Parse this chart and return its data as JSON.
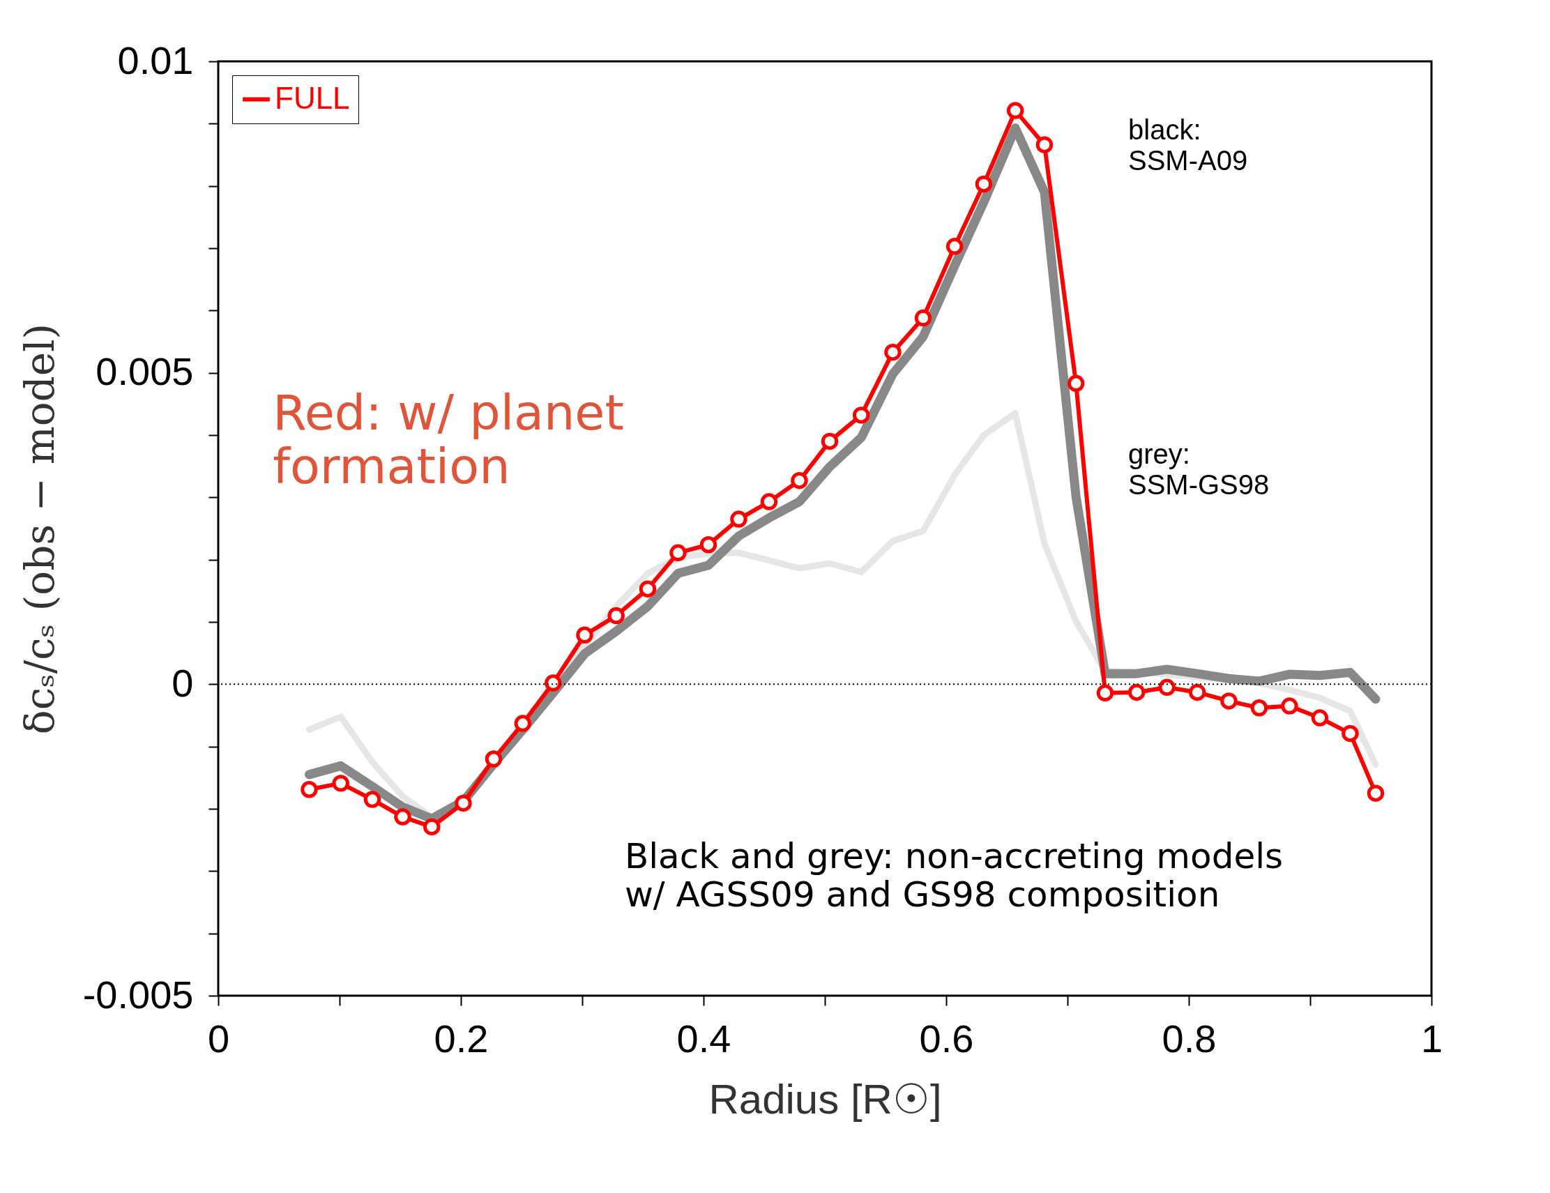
{
  "chart_data": {
    "type": "line",
    "xlabel": "Radius [R☉]",
    "ylabel": "δcₛ/cₛ (obs − model)",
    "xlim": [
      0,
      1
    ],
    "ylim": [
      -0.005,
      0.01
    ],
    "xticks": [
      0,
      {
        "value": 0.1,
        "label": null
      },
      0.2,
      {
        "value": 0.3,
        "label": null
      },
      0.4,
      {
        "value": 0.5,
        "label": null
      },
      0.6,
      {
        "value": 0.7,
        "label": null
      },
      0.8,
      {
        "value": 0.9,
        "label": null
      },
      1
    ],
    "yticks": [
      -0.005,
      {
        "value": -0.004,
        "label": null
      },
      {
        "value": -0.003,
        "label": null
      },
      {
        "value": -0.002,
        "label": null
      },
      {
        "value": -0.001,
        "label": null
      },
      0,
      {
        "value": 0.001,
        "label": null
      },
      {
        "value": 0.002,
        "label": null
      },
      {
        "value": 0.003,
        "label": null
      },
      {
        "value": 0.004,
        "label": null
      },
      0.005,
      {
        "value": 0.006,
        "label": null
      },
      {
        "value": 0.007,
        "label": null
      },
      {
        "value": 0.008,
        "label": null
      },
      {
        "value": 0.009,
        "label": null
      },
      0.01
    ],
    "x": [
      0.075,
      0.101,
      0.127,
      0.152,
      0.176,
      0.202,
      0.227,
      0.251,
      0.276,
      0.302,
      0.328,
      0.354,
      0.379,
      0.404,
      0.429,
      0.454,
      0.479,
      0.504,
      0.53,
      0.556,
      0.581,
      0.607,
      0.631,
      0.657,
      0.681,
      0.707,
      0.731,
      0.757,
      0.782,
      0.807,
      0.833,
      0.858,
      0.883,
      0.908,
      0.933,
      0.954
    ],
    "series": [
      {
        "color": "#e6e6e6",
        "marker": "none",
        "values": [
          -0.00073,
          -0.00052,
          -0.00125,
          -0.0018,
          -0.00213,
          -0.00185,
          -0.00125,
          -0.00069,
          -6e-05,
          0.00062,
          0.00125,
          0.00178,
          0.00203,
          0.0021,
          0.00211,
          0.00199,
          0.00186,
          0.00194,
          0.0018,
          0.0023,
          0.00246,
          0.00336,
          0.004,
          0.00435,
          0.00226,
          0.00101,
          0.00021,
          0.00019,
          0.00016,
          0.00011,
          8e-05,
          2e-05,
          -9e-05,
          -0.00022,
          -0.00043,
          -0.00129
        ]
      },
      {
        "color": "#888888",
        "marker": "none",
        "values": [
          -0.00145,
          -0.00131,
          -0.00164,
          -0.00197,
          -0.00216,
          -0.00188,
          -0.00128,
          -0.00073,
          -0.00014,
          0.00049,
          0.00085,
          0.00125,
          0.00178,
          0.00191,
          0.00238,
          0.00267,
          0.00293,
          0.00349,
          0.00396,
          0.00498,
          0.00558,
          0.00672,
          0.00774,
          0.00893,
          0.0079,
          0.00301,
          0.00017,
          0.00017,
          0.00024,
          0.00017,
          9e-05,
          5e-05,
          0.00016,
          0.00014,
          0.00019,
          -0.00024
        ]
      },
      {
        "name": "FULL",
        "color": "#ff0000",
        "marker": "circle",
        "values": [
          -0.00169,
          -0.00159,
          -0.00185,
          -0.00213,
          -0.00229,
          -0.00191,
          -0.0012,
          -0.00063,
          2e-05,
          0.00079,
          0.0011,
          0.00153,
          0.00211,
          0.00224,
          0.00265,
          0.00293,
          0.00327,
          0.0039,
          0.00432,
          0.00533,
          0.00588,
          0.00703,
          0.00803,
          0.00921,
          0.00866,
          0.00483,
          -0.00014,
          -0.00013,
          -5e-05,
          -0.00013,
          -0.00027,
          -0.00038,
          -0.00035,
          -0.00054,
          -0.00079,
          -0.00175
        ]
      }
    ],
    "ref_lines": [
      {
        "axis": "y",
        "value": 0,
        "color": "#000000",
        "line_style": "dotted"
      }
    ],
    "annotations": [
      "black:\nSSM-A09",
      "grey:\nSSM-GS98",
      "Red: w/ planet\nformation",
      "Black and grey: non-accreting models\nw/ AGSS09 and GS98 composition"
    ],
    "legend": "top left",
    "grid": false
  }
}
